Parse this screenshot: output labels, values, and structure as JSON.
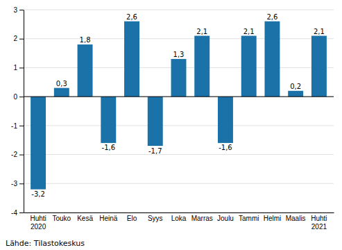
{
  "chart_data": {
    "type": "bar",
    "categories": [
      "Huhti\n2020",
      "Touko",
      "Kesä",
      "Heinä",
      "Elo",
      "Syys",
      "Loka",
      "Marras",
      "Joulu",
      "Tammi",
      "Helmi",
      "Maalis",
      "Huhti\n2021"
    ],
    "values": [
      -3.2,
      0.3,
      1.8,
      -1.6,
      2.6,
      -1.7,
      1.3,
      2.1,
      -1.6,
      2.1,
      2.6,
      0.2,
      2.1
    ],
    "value_labels": [
      "-3,2",
      "0,3",
      "1,8",
      "-1,6",
      "2,6",
      "-1,7",
      "1,3",
      "2,1",
      "-1,6",
      "2,1",
      "2,6",
      "0,2",
      "2,1"
    ],
    "data_labels": true,
    "color": "#1a72a8",
    "ylim": [
      -4,
      3
    ],
    "yticks": [
      -4,
      -3,
      -2,
      -1,
      0,
      1,
      2,
      3
    ],
    "grid": true,
    "footnote": "Lähde: Tilastokeskus"
  }
}
